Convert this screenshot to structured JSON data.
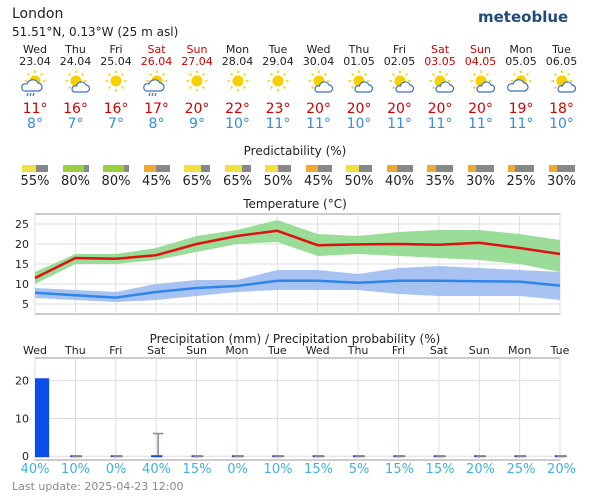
{
  "header": {
    "location": "London",
    "coords": "51.51°N, 0.13°W (25 m asl)",
    "brand": "meteoblue"
  },
  "days": [
    {
      "dow": "Wed",
      "date": "23.04",
      "weekend": false,
      "icon": "sun-cloud-rain-icon",
      "tmax": "11°",
      "tmin": "8°",
      "pred": "55%",
      "predScore": 0.55,
      "precip": 20.9,
      "precipMax": 20.9,
      "pprob": "40%"
    },
    {
      "dow": "Thu",
      "date": "24.04",
      "weekend": false,
      "icon": "sun-cloud-icon",
      "tmax": "16°",
      "tmin": "7°",
      "pred": "80%",
      "predScore": 0.8,
      "precip": 0,
      "precipMax": 0,
      "pprob": "10%"
    },
    {
      "dow": "Fri",
      "date": "25.04",
      "weekend": false,
      "icon": "sun-icon",
      "tmax": "16°",
      "tmin": "7°",
      "pred": "80%",
      "predScore": 0.8,
      "precip": 0,
      "precipMax": 0,
      "pprob": "0%"
    },
    {
      "dow": "Sat",
      "date": "26.04",
      "weekend": true,
      "icon": "sun-cloud-rain-icon",
      "tmax": "17°",
      "tmin": "8°",
      "pred": "45%",
      "predScore": 0.45,
      "precip": 0.4,
      "precipMax": 6,
      "pprob": "40%"
    },
    {
      "dow": "Sun",
      "date": "27.04",
      "weekend": true,
      "icon": "sun-icon",
      "tmax": "20°",
      "tmin": "9°",
      "pred": "65%",
      "predScore": 0.65,
      "precip": 0,
      "precipMax": 0,
      "pprob": "15%"
    },
    {
      "dow": "Mon",
      "date": "28.04",
      "weekend": false,
      "icon": "sun-icon",
      "tmax": "22°",
      "tmin": "10°",
      "pred": "65%",
      "predScore": 0.65,
      "precip": 0,
      "precipMax": 0,
      "pprob": "0%"
    },
    {
      "dow": "Tue",
      "date": "29.04",
      "weekend": false,
      "icon": "sun-icon",
      "tmax": "23°",
      "tmin": "11°",
      "pred": "50%",
      "predScore": 0.5,
      "precip": 0,
      "precipMax": 0,
      "pprob": "10%"
    },
    {
      "dow": "Wed",
      "date": "30.04",
      "weekend": false,
      "icon": "sun-cloud-icon",
      "tmax": "20°",
      "tmin": "11°",
      "pred": "45%",
      "predScore": 0.45,
      "precip": 0,
      "precipMax": 0,
      "pprob": "15%"
    },
    {
      "dow": "Thu",
      "date": "01.05",
      "weekend": false,
      "icon": "sun-cloud-icon",
      "tmax": "20°",
      "tmin": "10°",
      "pred": "50%",
      "predScore": 0.5,
      "precip": 0,
      "precipMax": 0,
      "pprob": "5%"
    },
    {
      "dow": "Fri",
      "date": "02.05",
      "weekend": false,
      "icon": "sun-cloud-icon",
      "tmax": "20°",
      "tmin": "11°",
      "pred": "40%",
      "predScore": 0.4,
      "precip": 0,
      "precipMax": 0,
      "pprob": "15%"
    },
    {
      "dow": "Sat",
      "date": "03.05",
      "weekend": true,
      "icon": "sun-cloud-icon",
      "tmax": "20°",
      "tmin": "11°",
      "pred": "35%",
      "predScore": 0.35,
      "precip": 0,
      "precipMax": 0,
      "pprob": "15%"
    },
    {
      "dow": "Sun",
      "date": "04.05",
      "weekend": true,
      "icon": "sun-cloud-icon",
      "tmax": "20°",
      "tmin": "11°",
      "pred": "30%",
      "predScore": 0.3,
      "precip": 0,
      "precipMax": 0,
      "pprob": "20%"
    },
    {
      "dow": "Mon",
      "date": "05.05",
      "weekend": false,
      "icon": "cloud-sun-icon",
      "tmax": "19°",
      "tmin": "11°",
      "pred": "25%",
      "predScore": 0.25,
      "precip": 0,
      "precipMax": 0,
      "pprob": "25%"
    },
    {
      "dow": "Tue",
      "date": "06.05",
      "weekend": false,
      "icon": "sun-cloud-icon",
      "tmax": "18°",
      "tmin": "10°",
      "pred": "30%",
      "predScore": 0.3,
      "precip": 0,
      "precipMax": 0,
      "pprob": "20%"
    }
  ],
  "predictability": {
    "title": "Predictability (%)"
  },
  "temperature": {
    "title": "Temperature (°C)",
    "yticks": [
      "5",
      "10",
      "15",
      "20",
      "25"
    ],
    "ylim": [
      2.5,
      27.5
    ],
    "max_line": [
      11.5,
      16.5,
      16.3,
      17.2,
      20,
      22,
      23.3,
      19.7,
      19.9,
      20,
      19.8,
      20.3,
      19,
      17.5
    ],
    "max_band_lo": [
      10,
      15,
      15,
      16,
      18,
      20,
      20.5,
      17,
      17.5,
      17,
      16.5,
      16,
      15,
      13
    ],
    "max_band_hi": [
      13,
      17.5,
      17.5,
      19,
      22,
      23.5,
      26,
      22.5,
      22,
      23,
      23.5,
      23.5,
      22.5,
      21
    ],
    "min_line": [
      7.8,
      7.2,
      6.6,
      8,
      9,
      9.5,
      10.8,
      10.8,
      10.3,
      10.8,
      10.8,
      10.7,
      10.6,
      9.6
    ],
    "min_band_lo": [
      6.5,
      6,
      5.5,
      6,
      7,
      8,
      8.5,
      8.5,
      8.5,
      7.5,
      7,
      7,
      7,
      6
    ],
    "min_band_hi": [
      9,
      8.5,
      8,
      10,
      11,
      11,
      13.5,
      13.5,
      12.5,
      14,
      14.5,
      14,
      13.5,
      13
    ]
  },
  "precipitation": {
    "title": "Precipitation (mm) / Precipitation probability (%)",
    "day_labels": [
      "Wed",
      "Thu",
      "Fri",
      "Sat",
      "Sun",
      "Mon",
      "Tue",
      "Wed",
      "Thu",
      "Fri",
      "Sat",
      "Sun",
      "Mon",
      "Tue"
    ],
    "yticks": [
      "0",
      "10",
      "20"
    ],
    "ylim": [
      -1,
      26
    ]
  },
  "chart_data": [
    {
      "type": "line",
      "title": "Temperature (°C)",
      "x": [
        "23.04",
        "24.04",
        "25.04",
        "26.04",
        "27.04",
        "28.04",
        "29.04",
        "30.04",
        "01.05",
        "02.05",
        "03.05",
        "04.05",
        "05.05",
        "06.05"
      ],
      "series": [
        {
          "values": [
            11.5,
            16.5,
            16.3,
            17.2,
            20,
            22,
            23.3,
            19.7,
            19.9,
            20,
            19.8,
            20.3,
            19,
            17.5
          ]
        },
        {
          "values": [
            7.8,
            7.2,
            6.6,
            8,
            9,
            9.5,
            10.8,
            10.8,
            10.3,
            10.8,
            10.8,
            10.7,
            10.6,
            9.6
          ]
        }
      ],
      "ylim": [
        2.5,
        27.5
      ]
    },
    {
      "type": "bar",
      "title": "Precipitation (mm) / Precipitation probability (%)",
      "categories": [
        "Wed",
        "Thu",
        "Fri",
        "Sat",
        "Sun",
        "Mon",
        "Tue",
        "Wed",
        "Thu",
        "Fri",
        "Sat",
        "Sun",
        "Mon",
        "Tue"
      ],
      "values": [
        20.9,
        0,
        0,
        0.4,
        0,
        0,
        0,
        0,
        0,
        0,
        0,
        0,
        0,
        0
      ],
      "ylim": [
        -1,
        26
      ]
    }
  ],
  "colors": {
    "weekend": "#d40000",
    "max_temp": "#e01010",
    "min_temp": "#2f86e8",
    "max_band": "#8ed98e",
    "min_band": "#9fbbf0",
    "precip_bar": "#0a4de8",
    "prob_text": "#3fb0e0"
  },
  "footer": {
    "last_update": "Last update: 2025-04-23 12:00"
  }
}
